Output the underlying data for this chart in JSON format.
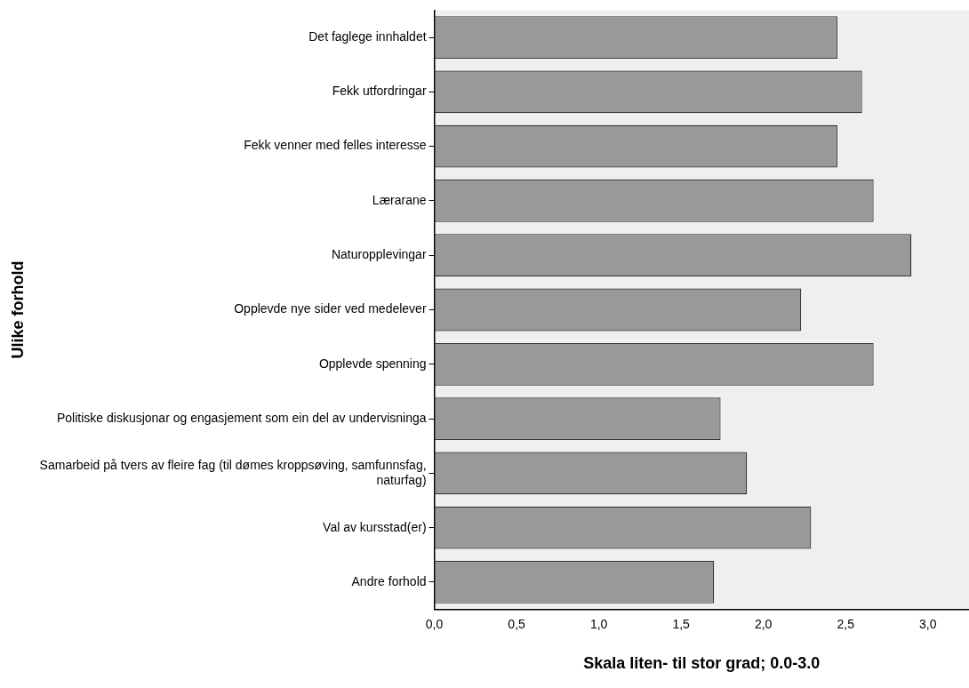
{
  "chart_data": {
    "type": "bar",
    "orientation": "horizontal",
    "xlabel": "Skala liten- til stor grad; 0.0-3.0",
    "ylabel": "Ulike forhold",
    "categories": [
      "Det faglege innhaldet",
      "Fekk utfordringar",
      "Fekk venner med felles interesse",
      "Lærarane",
      "Naturopplevingar",
      "Opplevde nye sider ved medelever",
      "Opplevde spenning",
      "Politiske diskusjonar og engasjement som ein del av undervisninga",
      "Samarbeid på tvers av fleire fag (til dømes kroppsøving, samfunnsfag, naturfag)",
      "Val av kursstad(er)",
      "Andre forhold"
    ],
    "values": [
      2.45,
      2.6,
      2.45,
      2.67,
      2.9,
      2.23,
      2.67,
      1.74,
      1.9,
      2.29,
      1.7
    ],
    "color": "#999999",
    "xlim": [
      0,
      3.25
    ],
    "xticks": [
      {
        "value": 0,
        "label": "0,0"
      },
      {
        "value": 0.5,
        "label": "0,5"
      },
      {
        "value": 1,
        "label": "1,0"
      },
      {
        "value": 1.5,
        "label": "1,5"
      },
      {
        "value": 2,
        "label": "2,0"
      },
      {
        "value": 2.5,
        "label": "2,5"
      },
      {
        "value": 3,
        "label": "3,0"
      }
    ],
    "grid": false,
    "legend": false
  }
}
